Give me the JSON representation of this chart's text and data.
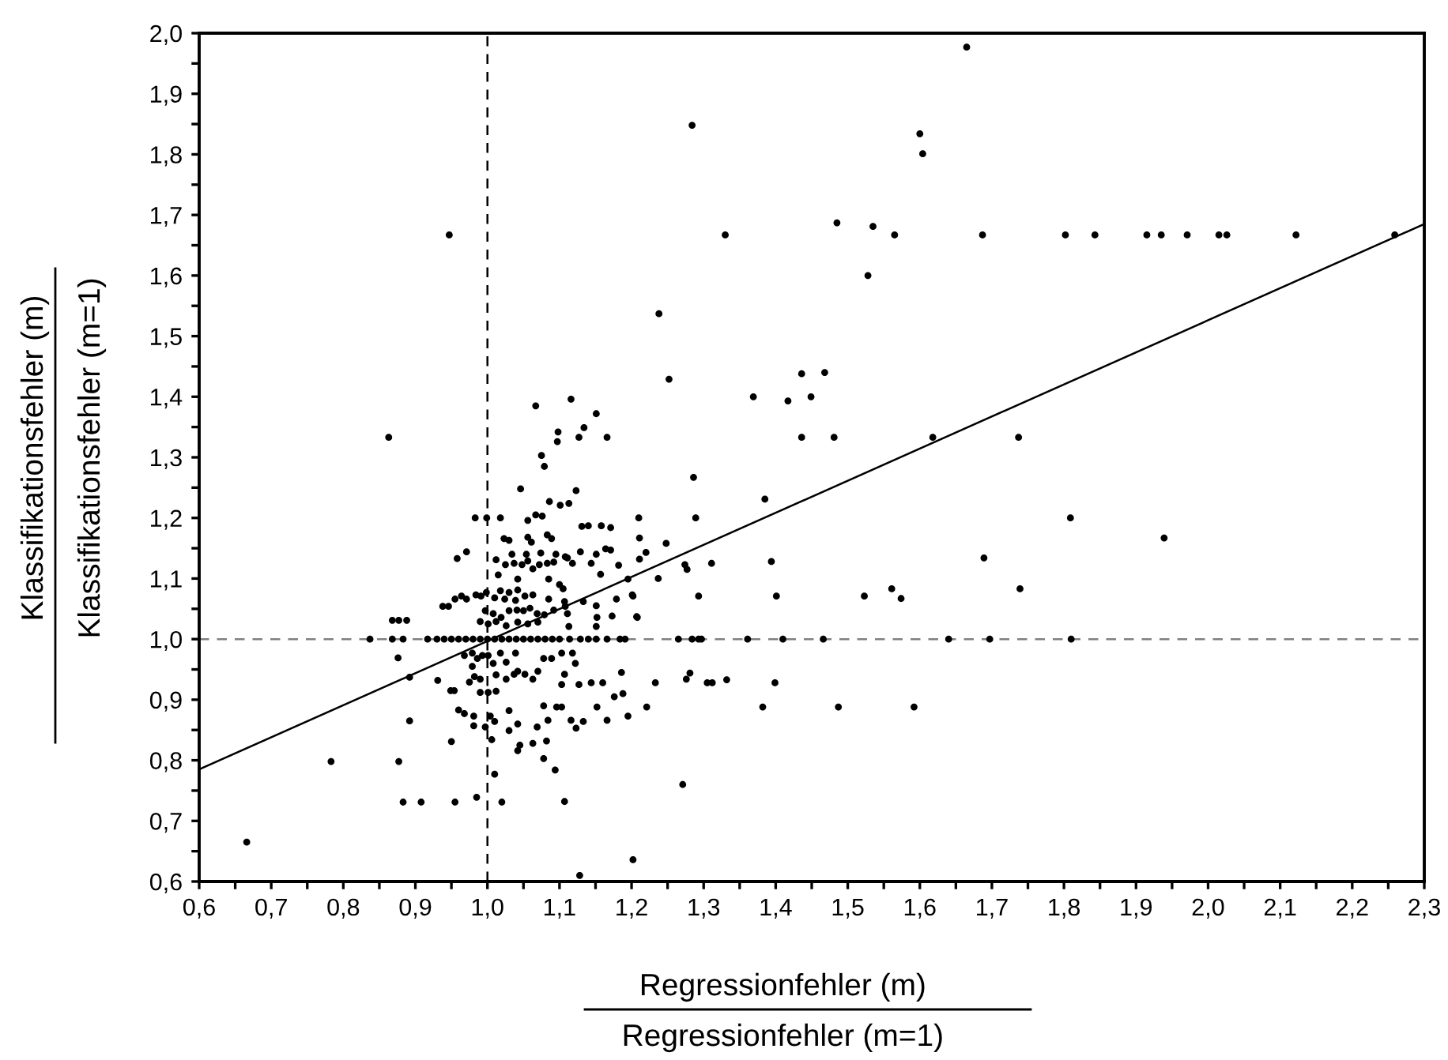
{
  "chart_data": {
    "type": "scatter",
    "xlabel": "Regressionfehler (m)\nRegressionfehler (m=1)",
    "ylabel": "Klassifikationsfehler (m)\nKlassifikationsfehler (m=1)",
    "xlim": [
      0.6,
      2.3
    ],
    "ylim": [
      0.6,
      2.0
    ],
    "xticks": [
      {
        "value": 0.6,
        "label": "0,6"
      },
      {
        "value": 0.65,
        "label": null
      },
      {
        "value": 0.7,
        "label": "0,7"
      },
      {
        "value": 0.75,
        "label": null
      },
      {
        "value": 0.8,
        "label": "0,8"
      },
      {
        "value": 0.85,
        "label": null
      },
      {
        "value": 0.9,
        "label": "0,9"
      },
      {
        "value": 0.95,
        "label": null
      },
      {
        "value": 1.0,
        "label": "1,0"
      },
      {
        "value": 1.05,
        "label": null
      },
      {
        "value": 1.1,
        "label": "1,1"
      },
      {
        "value": 1.15,
        "label": null
      },
      {
        "value": 1.2,
        "label": "1,2"
      },
      {
        "value": 1.25,
        "label": null
      },
      {
        "value": 1.3,
        "label": "1,3"
      },
      {
        "value": 1.35,
        "label": null
      },
      {
        "value": 1.4,
        "label": "1,4"
      },
      {
        "value": 1.45,
        "label": null
      },
      {
        "value": 1.5,
        "label": "1,5"
      },
      {
        "value": 1.55,
        "label": null
      },
      {
        "value": 1.6,
        "label": "1,6"
      },
      {
        "value": 1.65,
        "label": null
      },
      {
        "value": 1.7,
        "label": "1,7"
      },
      {
        "value": 1.75,
        "label": null
      },
      {
        "value": 1.8,
        "label": "1,8"
      },
      {
        "value": 1.85,
        "label": null
      },
      {
        "value": 1.9,
        "label": "1,9"
      },
      {
        "value": 1.95,
        "label": null
      },
      {
        "value": 2.0,
        "label": "2,0"
      },
      {
        "value": 2.05,
        "label": null
      },
      {
        "value": 2.1,
        "label": "2,1"
      },
      {
        "value": 2.15,
        "label": null
      },
      {
        "value": 2.2,
        "label": "2,2"
      },
      {
        "value": 2.25,
        "label": null
      },
      {
        "value": 2.3,
        "label": "2,3"
      }
    ],
    "yticks": [
      {
        "value": 0.6,
        "label": "0,6"
      },
      {
        "value": 0.65,
        "label": null
      },
      {
        "value": 0.7,
        "label": "0,7"
      },
      {
        "value": 0.75,
        "label": null
      },
      {
        "value": 0.8,
        "label": "0,8"
      },
      {
        "value": 0.85,
        "label": null
      },
      {
        "value": 0.9,
        "label": "0,9"
      },
      {
        "value": 0.95,
        "label": null
      },
      {
        "value": 1.0,
        "label": "1,0"
      },
      {
        "value": 1.05,
        "label": null
      },
      {
        "value": 1.1,
        "label": "1,1"
      },
      {
        "value": 1.15,
        "label": null
      },
      {
        "value": 1.2,
        "label": "1,2"
      },
      {
        "value": 1.25,
        "label": null
      },
      {
        "value": 1.3,
        "label": "1,3"
      },
      {
        "value": 1.35,
        "label": null
      },
      {
        "value": 1.4,
        "label": "1,4"
      },
      {
        "value": 1.45,
        "label": null
      },
      {
        "value": 1.5,
        "label": "1,5"
      },
      {
        "value": 1.55,
        "label": null
      },
      {
        "value": 1.6,
        "label": "1,6"
      },
      {
        "value": 1.65,
        "label": null
      },
      {
        "value": 1.7,
        "label": "1,7"
      },
      {
        "value": 1.75,
        "label": null
      },
      {
        "value": 1.8,
        "label": "1,8"
      },
      {
        "value": 1.85,
        "label": null
      },
      {
        "value": 1.9,
        "label": "1,9"
      },
      {
        "value": 1.95,
        "label": null
      },
      {
        "value": 2.0,
        "label": "2,0"
      }
    ],
    "grid": false,
    "legend": false,
    "marker": "circle",
    "ref_lines": [
      {
        "axis": "x",
        "value": 1.0,
        "color": "#000000",
        "line_style": "dashed"
      },
      {
        "axis": "y",
        "value": 1.0,
        "color": "#808080",
        "line_style": "dashed"
      }
    ],
    "series": [
      {
        "color": "#000000",
        "x": [
          1.665,
          1.284,
          1.6,
          1.604,
          1.33,
          1.485,
          1.535,
          1.565,
          1.687,
          1.802,
          1.843,
          1.915,
          1.935,
          1.971,
          2.015,
          2.026,
          2.122,
          2.259,
          1.528,
          1.238,
          1.252,
          1.436,
          1.468,
          1.369,
          1.417,
          1.449,
          1.436,
          1.481,
          1.618,
          1.737,
          1.286,
          1.385,
          1.21,
          1.289,
          1.809,
          1.211,
          1.939,
          1.248,
          1.22,
          1.211,
          1.274,
          1.277,
          1.311,
          1.394,
          1.689,
          1.237,
          1.202,
          1.293,
          1.401,
          1.523,
          1.561,
          1.574,
          1.739,
          1.207,
          1.265,
          1.284,
          1.293,
          1.297,
          1.361,
          1.41,
          1.466,
          1.64,
          1.697,
          1.81,
          1.233,
          1.221,
          1.276,
          1.281,
          1.305,
          1.312,
          1.332,
          1.399,
          1.382,
          1.487,
          1.592,
          1.271,
          1.202,
          1.128,
          0.947,
          0.863,
          0.666,
          0.783,
          0.877,
          0.883,
          0.908,
          0.955,
          0.985,
          1.02,
          0.837,
          0.868,
          0.883,
          0.868,
          0.877,
          0.888,
          0.876,
          0.892,
          0.892,
          0.917,
          0.931,
          0.95,
          0.958,
          0.971,
          0.983,
          0.999,
          1.018,
          1.067,
          1.116,
          1.151,
          1.098,
          1.097,
          1.134,
          1.127,
          1.166,
          1.075,
          1.079,
          1.046,
          1.123,
          1.086,
          1.101,
          1.113,
          1.056,
          1.067,
          1.076,
          1.131,
          1.14,
          1.158,
          1.171,
          1.023,
          1.03,
          1.056,
          1.061,
          1.083,
          1.089,
          1.012,
          1.034,
          1.054,
          1.074,
          1.095,
          1.108,
          1.118,
          1.129,
          1.151,
          1.164,
          1.171,
          1.025,
          1.037,
          1.048,
          1.056,
          1.063,
          1.072,
          1.083,
          1.092,
          1.111,
          1.144,
          1.157,
          1.182,
          1.015,
          1.042,
          1.085,
          1.1,
          1.195,
          1.105,
          0.9985,
          1.018,
          1.03,
          1.042,
          1.01,
          1.024,
          1.039,
          1.052,
          1.063,
          0.938,
          0.946,
          0.955,
          0.964,
          0.971,
          0.984,
          0.991,
          1.085,
          1.107,
          1.133,
          1.151,
          1.179,
          1.201,
          1.108,
          1.111,
          1.152,
          1.173,
          1.208,
          0.997,
          1.008,
          1.019,
          1.03,
          1.041,
          1.05,
          1.059,
          1.069,
          1.079,
          1.092,
          0.99,
          1.001,
          1.012,
          1.026,
          1.042,
          1.056,
          1.07,
          1.113,
          1.151,
          0.93,
          0.94,
          0.95,
          0.96,
          0.97,
          0.98,
          0.99,
          1.0,
          1.01,
          1.02,
          1.03,
          1.04,
          1.05,
          1.06,
          1.07,
          1.08,
          1.09,
          1.1,
          1.114,
          1.129,
          1.14,
          1.151,
          1.166,
          1.184,
          1.191,
          0.949,
          0.954,
          0.968,
          0.979,
          0.986,
          0.993,
          0.979,
          0.982,
          0.975,
          0.99,
          1.001,
          1.008,
          1.018,
          1.026,
          1.039,
          1.042,
          1.012,
          1.026,
          1.037,
          1.052,
          1.063,
          1.07,
          1.078,
          1.089,
          1.103,
          1.118,
          1.122,
          1.107,
          1.103,
          1.127,
          1.144,
          1.16,
          1.186,
          1.176,
          1.188,
          0.99,
          1.001,
          1.012,
          0.96,
          0.968,
          0.981,
          0.981,
          0.997,
          1.004,
          1.01,
          1.03,
          1.042,
          1.03,
          1.069,
          1.078,
          1.084,
          1.096,
          1.103,
          1.116,
          1.123,
          1.133,
          1.152,
          1.166,
          1.195,
          1.006,
          1.045,
          1.042,
          1.063,
          1.082,
          1.078,
          1.094,
          1.01,
          1.107
        ],
        "values": [
          1.977,
          1.848,
          1.834,
          1.801,
          1.667,
          1.687,
          1.681,
          1.667,
          1.667,
          1.667,
          1.667,
          1.667,
          1.667,
          1.667,
          1.667,
          1.667,
          1.667,
          1.667,
          1.6,
          1.537,
          1.429,
          1.438,
          1.44,
          1.4,
          1.393,
          1.4,
          1.333,
          1.333,
          1.333,
          1.333,
          1.267,
          1.231,
          1.2,
          1.2,
          1.2,
          1.167,
          1.167,
          1.158,
          1.143,
          1.132,
          1.123,
          1.115,
          1.125,
          1.128,
          1.134,
          1.1,
          1.071,
          1.071,
          1.071,
          1.071,
          1.083,
          1.067,
          1.083,
          1.037,
          1.0,
          1.0,
          1.0,
          1.0,
          1.0,
          1.0,
          1.0,
          1.0,
          1.0,
          1.0,
          0.928,
          0.888,
          0.934,
          0.944,
          0.928,
          0.928,
          0.933,
          0.928,
          0.888,
          0.888,
          0.888,
          0.76,
          0.636,
          0.61,
          1.667,
          1.333,
          0.665,
          0.798,
          0.798,
          0.731,
          0.731,
          0.731,
          0.739,
          0.731,
          1.0,
          1.0,
          1.0,
          1.031,
          1.031,
          1.031,
          0.969,
          0.937,
          0.865,
          1.0,
          0.932,
          0.831,
          1.133,
          1.144,
          1.2,
          1.2,
          1.2,
          1.385,
          1.396,
          1.372,
          1.342,
          1.326,
          1.349,
          1.333,
          1.333,
          1.303,
          1.285,
          1.248,
          1.245,
          1.227,
          1.221,
          1.224,
          1.196,
          1.205,
          1.203,
          1.186,
          1.187,
          1.187,
          1.184,
          1.166,
          1.163,
          1.168,
          1.16,
          1.172,
          1.166,
          1.131,
          1.14,
          1.14,
          1.142,
          1.14,
          1.136,
          1.125,
          1.144,
          1.14,
          1.149,
          1.147,
          1.123,
          1.125,
          1.123,
          1.129,
          1.116,
          1.123,
          1.125,
          1.127,
          1.134,
          1.125,
          1.107,
          1.122,
          1.106,
          1.099,
          1.099,
          1.09,
          1.099,
          1.083,
          1.077,
          1.08,
          1.077,
          1.081,
          1.068,
          1.066,
          1.064,
          1.071,
          1.073,
          1.054,
          1.054,
          1.066,
          1.071,
          1.066,
          1.073,
          1.071,
          1.066,
          1.062,
          1.062,
          1.055,
          1.066,
          1.073,
          1.054,
          1.042,
          1.036,
          1.038,
          1.036,
          1.047,
          1.042,
          1.036,
          1.047,
          1.048,
          1.047,
          1.051,
          1.042,
          1.04,
          1.048,
          1.029,
          1.025,
          1.029,
          1.022,
          1.028,
          1.025,
          1.028,
          1.021,
          1.021,
          1.0,
          1.0,
          1.0,
          1.0,
          1.0,
          1.0,
          1.0,
          1.0,
          1.0,
          1.0,
          1.0,
          1.0,
          1.0,
          1.0,
          1.0,
          1.0,
          1.0,
          1.0,
          1.0,
          1.0,
          1.0,
          1.0,
          1.0,
          1.0,
          1.0,
          0.915,
          0.915,
          0.973,
          0.977,
          0.968,
          0.973,
          0.955,
          0.938,
          0.929,
          0.934,
          0.973,
          0.96,
          0.977,
          0.962,
          0.977,
          0.947,
          0.941,
          0.934,
          0.942,
          0.942,
          0.934,
          0.947,
          0.968,
          0.968,
          0.977,
          0.977,
          0.96,
          0.942,
          0.925,
          0.925,
          0.928,
          0.928,
          0.945,
          0.905,
          0.91,
          0.912,
          0.912,
          0.914,
          0.883,
          0.877,
          0.873,
          0.857,
          0.855,
          0.873,
          0.864,
          0.882,
          0.86,
          0.849,
          0.855,
          0.89,
          0.866,
          0.888,
          0.888,
          0.866,
          0.853,
          0.864,
          0.888,
          0.866,
          0.873,
          0.834,
          0.825,
          0.816,
          0.828,
          0.832,
          0.803,
          0.784,
          0.777,
          0.732
        ]
      },
      {
        "type": "line",
        "color": "#000000",
        "line_style": "solid",
        "marker": "none",
        "x": [
          0.6,
          2.3
        ],
        "values": [
          0.785,
          1.685
        ]
      }
    ]
  }
}
